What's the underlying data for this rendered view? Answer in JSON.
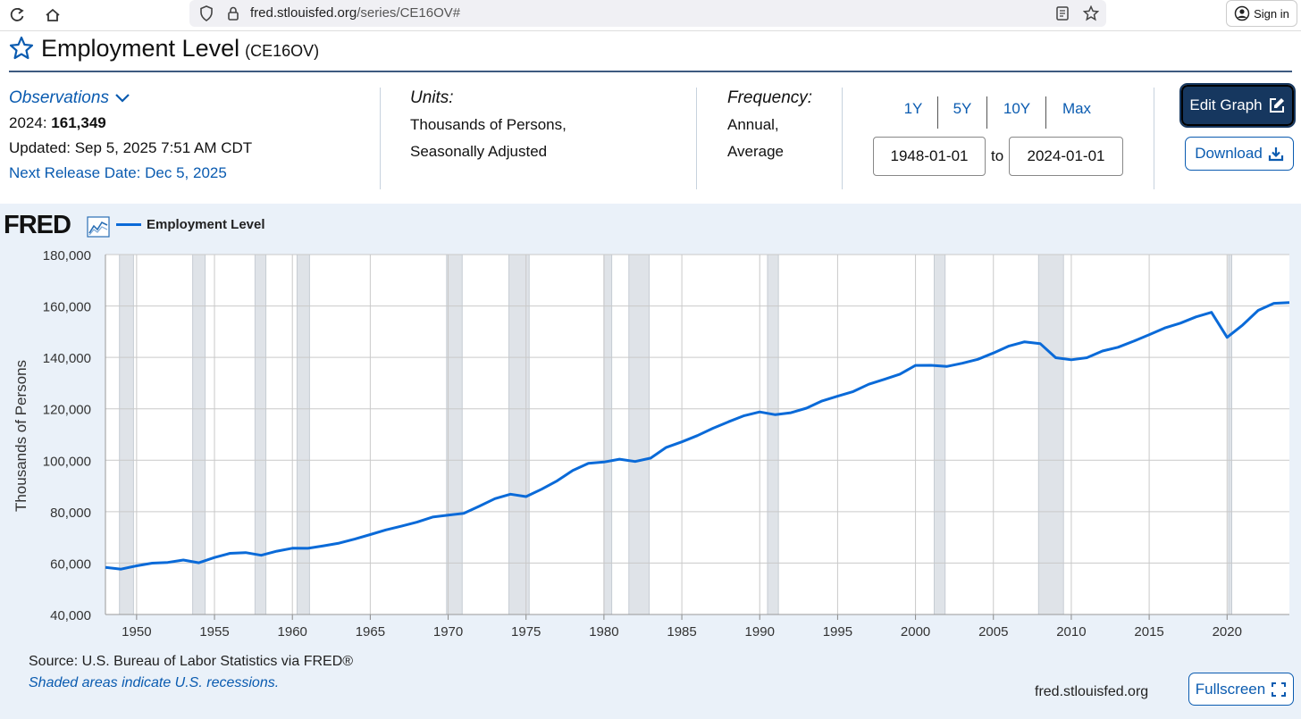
{
  "browser": {
    "url_domain": "fred.stlouisfed.org",
    "url_path": "/series/CE16OV#",
    "sign_in_label": "Sign in"
  },
  "header": {
    "title": "Employment Level",
    "series_id": "(CE16OV)"
  },
  "observations": {
    "label": "Observations",
    "year_label": "2024:",
    "value": "161,349",
    "updated": "Updated: Sep 5, 2025 7:51 AM CDT",
    "next_release": "Next Release Date: Dec 5, 2025"
  },
  "units": {
    "label": "Units:",
    "line1": "Thousands of Persons,",
    "line2": "Seasonally Adjusted"
  },
  "frequency": {
    "label": "Frequency:",
    "line1": "Annual,",
    "line2": "Average"
  },
  "range": {
    "buttons": [
      "1Y",
      "5Y",
      "10Y",
      "Max"
    ],
    "start_date": "1948-01-01",
    "to_label": "to",
    "end_date": "2024-01-01"
  },
  "actions": {
    "edit_graph": "Edit Graph",
    "download": "Download",
    "fullscreen": "Fullscreen"
  },
  "graph": {
    "logo": "FRED",
    "legend_label": "Employment Level",
    "source": "Source: U.S. Bureau of Labor Statistics via FRED®",
    "shaded_note": "Shaded areas indicate U.S. recessions.",
    "site": "fred.stlouisfed.org"
  },
  "colors": {
    "line": "#0a6ad8",
    "recession": "#dfe3e8",
    "panel": "#eaf1f9",
    "link": "#0a5bb0",
    "edit_button": "#16375f"
  },
  "chart_data": {
    "type": "line",
    "title": "Employment Level",
    "xlabel": "",
    "ylabel": "Thousands of Persons",
    "xlim": [
      1948,
      2024
    ],
    "ylim": [
      40000,
      180000
    ],
    "yticks": [
      40000,
      60000,
      80000,
      100000,
      120000,
      140000,
      160000,
      180000
    ],
    "ytick_labels": [
      "40,000",
      "60,000",
      "80,000",
      "100,000",
      "120,000",
      "140,000",
      "160,000",
      "180,000"
    ],
    "xticks": [
      1950,
      1955,
      1960,
      1965,
      1970,
      1975,
      1980,
      1985,
      1990,
      1995,
      2000,
      2005,
      2010,
      2015,
      2020
    ],
    "grid": true,
    "recessions": [
      [
        1948.9,
        1949.8
      ],
      [
        1953.6,
        1954.4
      ],
      [
        1957.6,
        1958.3
      ],
      [
        1960.3,
        1961.1
      ],
      [
        1969.9,
        1970.9
      ],
      [
        1973.9,
        1975.2
      ],
      [
        1980.0,
        1980.5
      ],
      [
        1981.6,
        1982.9
      ],
      [
        1990.5,
        1991.2
      ],
      [
        2001.2,
        2001.9
      ],
      [
        2007.9,
        2009.5
      ],
      [
        2020.1,
        2020.3
      ]
    ],
    "series": [
      {
        "name": "Employment Level",
        "x": [
          1948,
          1949,
          1950,
          1951,
          1952,
          1953,
          1954,
          1955,
          1956,
          1957,
          1958,
          1959,
          1960,
          1961,
          1962,
          1963,
          1964,
          1965,
          1966,
          1967,
          1968,
          1969,
          1970,
          1971,
          1972,
          1973,
          1974,
          1975,
          1976,
          1977,
          1978,
          1979,
          1980,
          1981,
          1982,
          1983,
          1984,
          1985,
          1986,
          1987,
          1988,
          1989,
          1990,
          1991,
          1992,
          1993,
          1994,
          1995,
          1996,
          1997,
          1998,
          1999,
          2000,
          2001,
          2002,
          2003,
          2004,
          2005,
          2006,
          2007,
          2008,
          2009,
          2010,
          2011,
          2012,
          2013,
          2014,
          2015,
          2016,
          2017,
          2018,
          2019,
          2020,
          2021,
          2022,
          2023,
          2024
        ],
        "values": [
          58343,
          57651,
          58918,
          59961,
          60250,
          61179,
          60109,
          62170,
          63799,
          64071,
          63036,
          64630,
          65778,
          65746,
          66702,
          67762,
          69305,
          71088,
          72895,
          74372,
          75920,
          77902,
          78678,
          79367,
          82153,
          85064,
          86794,
          85846,
          88752,
          92017,
          96048,
          98824,
          99303,
          100397,
          99526,
          100834,
          105005,
          107150,
          109597,
          112440,
          114968,
          117342,
          118793,
          117718,
          118492,
          120259,
          123060,
          124900,
          126708,
          129558,
          131463,
          133488,
          136891,
          136933,
          136485,
          137736,
          139252,
          141730,
          144427,
          146047,
          145362,
          139877,
          139064,
          139869,
          142469,
          143929,
          146305,
          148834,
          151436,
          153337,
          155761,
          157538,
          147795,
          152581,
          158291,
          161037,
          161349
        ]
      }
    ]
  }
}
